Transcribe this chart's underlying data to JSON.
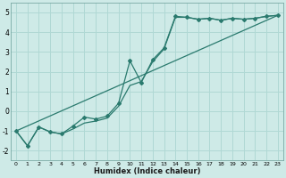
{
  "xlabel": "Humidex (Indice chaleur)",
  "bg_color": "#ceeae7",
  "grid_color": "#b0d8d4",
  "line_color": "#2a7a6e",
  "xlim": [
    -0.5,
    23.5
  ],
  "ylim": [
    -2.5,
    5.5
  ],
  "yticks": [
    -2,
    -1,
    0,
    1,
    2,
    3,
    4,
    5
  ],
  "xticks": [
    0,
    1,
    2,
    3,
    4,
    5,
    6,
    7,
    8,
    9,
    10,
    11,
    12,
    13,
    14,
    15,
    16,
    17,
    18,
    19,
    20,
    21,
    22,
    23
  ],
  "line1_x": [
    0,
    1,
    2,
    3,
    4,
    5,
    6,
    7,
    8,
    9,
    10,
    11,
    12,
    13,
    14,
    15,
    16,
    17,
    18,
    19,
    20,
    21,
    22,
    23
  ],
  "line1_y": [
    -1.0,
    -1.75,
    -0.8,
    -1.05,
    -1.15,
    -0.75,
    -0.3,
    -0.4,
    -0.25,
    0.4,
    2.55,
    1.45,
    2.6,
    3.2,
    4.8,
    4.75,
    4.65,
    4.7,
    4.6,
    4.7,
    4.65,
    4.7,
    4.8,
    4.85
  ],
  "line2_x": [
    0,
    1,
    2,
    3,
    4,
    5,
    6,
    7,
    8,
    9,
    10,
    11,
    12,
    13,
    14,
    15,
    16,
    17,
    18,
    19,
    20,
    21,
    22,
    23
  ],
  "line2_y": [
    -1.0,
    -1.75,
    -0.8,
    -1.05,
    -1.15,
    -0.9,
    -0.6,
    -0.5,
    -0.35,
    0.25,
    1.3,
    1.5,
    2.5,
    3.15,
    4.75,
    4.75,
    4.65,
    4.7,
    4.6,
    4.7,
    4.65,
    4.7,
    4.8,
    4.85
  ],
  "line3_x": [
    0,
    23
  ],
  "line3_y": [
    -1.0,
    4.85
  ]
}
